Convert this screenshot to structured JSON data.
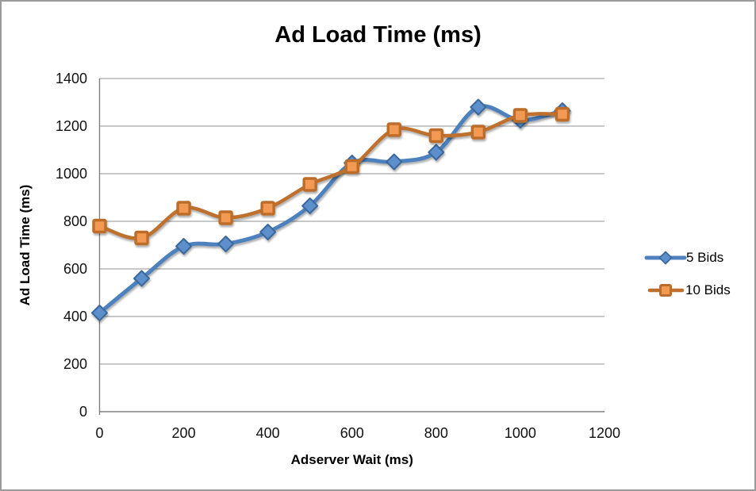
{
  "window": {
    "background": "#ffffff",
    "frame_border_color": "#9b9b9b"
  },
  "chart_data": {
    "type": "line",
    "title": "Ad Load Time (ms)",
    "xlabel": "Adserver Wait (ms)",
    "ylabel": "Ad Load Time (ms)",
    "x": [
      0,
      100,
      200,
      300,
      400,
      500,
      600,
      700,
      800,
      900,
      1000,
      1100
    ],
    "series": [
      {
        "name": "5 Bids",
        "values": [
          415,
          560,
          695,
          705,
          755,
          865,
          1045,
          1050,
          1090,
          1280,
          1225,
          1265
        ],
        "line_color": "#4E81BD",
        "marker": "diamond",
        "marker_fill": "#5C8FCB",
        "marker_stroke": "#3A689B"
      },
      {
        "name": "10 Bids",
        "values": [
          780,
          730,
          855,
          815,
          855,
          955,
          1030,
          1185,
          1160,
          1175,
          1245,
          1250
        ],
        "line_color": "#BE6F2D",
        "marker": "square",
        "marker_fill": "#F29A52",
        "marker_stroke": "#BC6D2A"
      }
    ],
    "x_ticks": [
      0,
      200,
      400,
      600,
      800,
      1000,
      1200
    ],
    "y_ticks": [
      0,
      200,
      400,
      600,
      800,
      1000,
      1200,
      1400
    ],
    "xlim": [
      0,
      1200
    ],
    "ylim": [
      0,
      1400
    ],
    "grid": true,
    "smooth": true,
    "gridline_color": "#A6A6A6",
    "axis_color": "#808080",
    "legend_position": "right"
  }
}
